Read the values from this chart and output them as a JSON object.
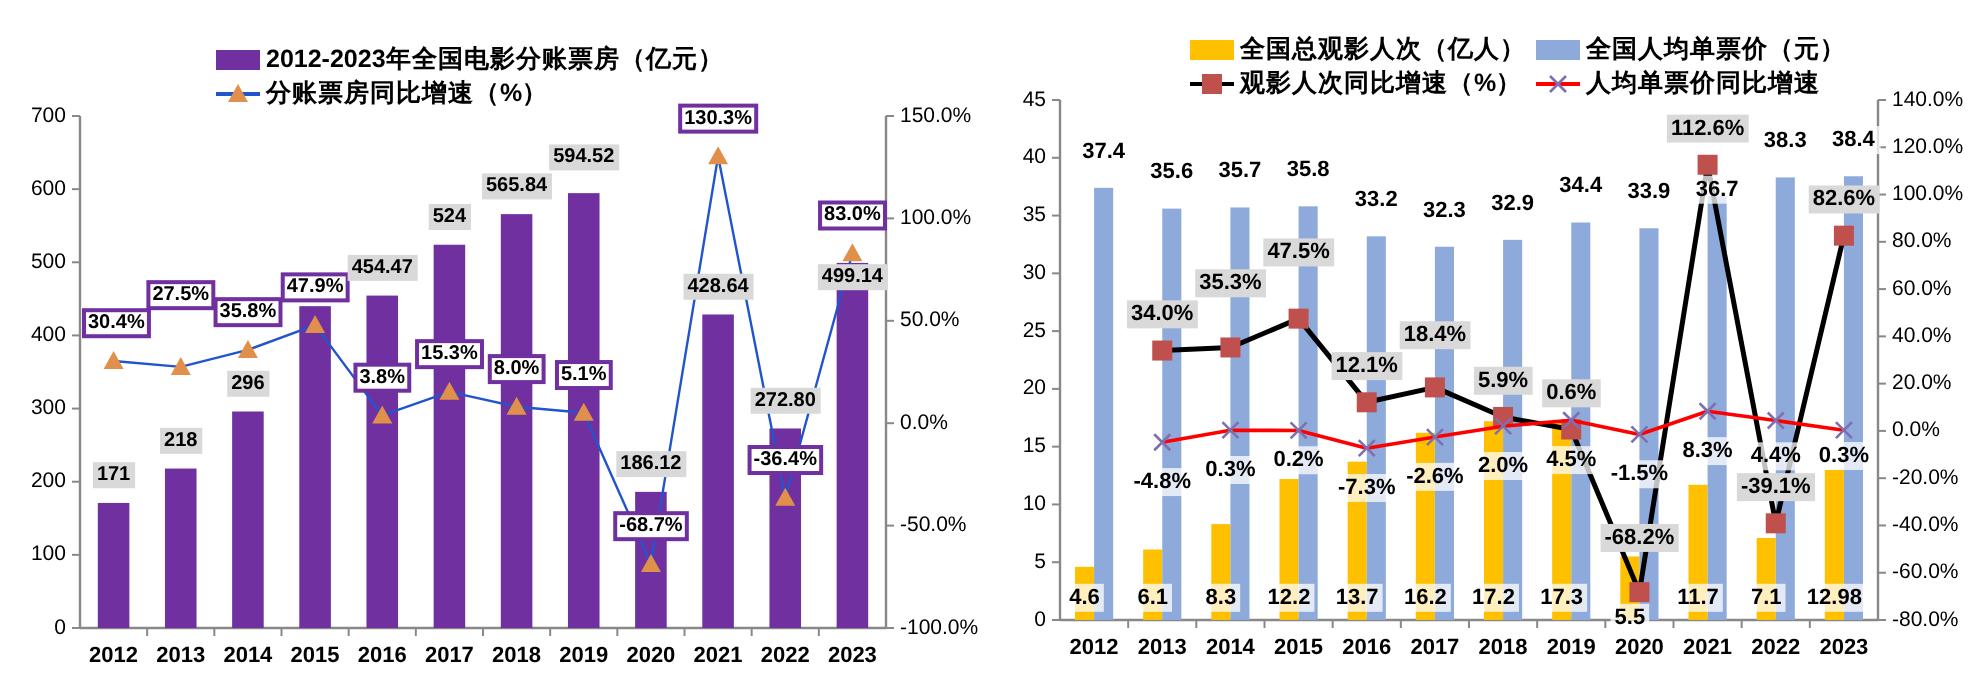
{
  "chart_data": [
    {
      "type": "bar",
      "categories": [
        "2012",
        "2013",
        "2014",
        "2015",
        "2016",
        "2017",
        "2018",
        "2019",
        "2020",
        "2021",
        "2022",
        "2023"
      ],
      "series": [
        {
          "name": "2012-2023年全国电影分账票房（亿元）",
          "type": "bar",
          "color": "#7030a0",
          "values": [
            171,
            218,
            296,
            440,
            454.47,
            524,
            565.84,
            594.52,
            186.12,
            428.64,
            272.8,
            499.14
          ],
          "value_labels": [
            "171",
            "218",
            "296",
            null,
            "454.47",
            "524",
            "565.84",
            "594.52",
            "186.12",
            "428.64",
            "272.80",
            "499.14"
          ]
        },
        {
          "name": "分账票房同比增速（%）",
          "type": "line",
          "axis": "y2",
          "marker": "triangle",
          "color": "#2255cc",
          "colors": [
            "#e0904a",
            "#e0904a",
            "#e0904a",
            "#e0904a",
            "#e0904a",
            "#e0904a",
            "#e0904a",
            "#e0904a",
            "#e0904a",
            "#e0904a",
            "#e0904a",
            "#e0904a"
          ],
          "values": [
            30.4,
            27.5,
            35.8,
            47.9,
            3.8,
            15.3,
            8.0,
            5.1,
            -68.7,
            130.3,
            -36.4,
            83.0
          ],
          "value_labels": [
            "30.4%",
            "27.5%",
            "35.8%",
            "47.9%",
            "3.8%",
            "15.3%",
            "8.0%",
            "5.1%",
            "-68.7%",
            "130.3%",
            "-36.4%",
            "83.0%"
          ]
        }
      ],
      "ylim": [
        0,
        700
      ],
      "yticks": [
        0,
        100,
        200,
        300,
        400,
        500,
        600,
        700
      ],
      "y2lim": [
        -100,
        150
      ],
      "y2ticks": [
        {
          "value": -100,
          "label": "-100.0%"
        },
        {
          "value": -50,
          "label": "-50.0%"
        },
        {
          "value": 0,
          "label": "0.0%"
        },
        {
          "value": 50,
          "label": "50.0%"
        },
        {
          "value": 100,
          "label": "100.0%"
        },
        {
          "value": 150,
          "label": "150.0%"
        }
      ],
      "legend": "top"
    },
    {
      "type": "bar",
      "categories": [
        "2012",
        "2013",
        "2014",
        "2015",
        "2016",
        "2017",
        "2018",
        "2019",
        "2020",
        "2021",
        "2022",
        "2023"
      ],
      "series": [
        {
          "name": "全国总观影人次（亿人）",
          "type": "bar",
          "color": "#ffc000",
          "values": [
            4.6,
            6.1,
            8.3,
            12.2,
            13.7,
            16.2,
            17.2,
            17.3,
            5.5,
            11.7,
            7.1,
            12.98
          ],
          "value_labels": [
            "4.6",
            "6.1",
            "8.3",
            "12.2",
            "13.7",
            "16.2",
            "17.2",
            "17.3",
            "5.5",
            "11.7",
            "7.1",
            "12.98"
          ]
        },
        {
          "name": "全国人均单票价（元）",
          "type": "bar",
          "color": "#8eaadb",
          "values": [
            37.4,
            35.6,
            35.7,
            35.8,
            33.2,
            32.3,
            32.9,
            34.4,
            33.9,
            36.7,
            38.3,
            38.4
          ],
          "value_labels": [
            "37.4",
            "35.6",
            "35.7",
            "35.8",
            "33.2",
            "32.3",
            "32.9",
            "34.4",
            "33.9",
            "36.7",
            "38.3",
            "38.4"
          ]
        },
        {
          "name": "观影人次同比增速（%）",
          "type": "line",
          "axis": "y2",
          "marker": "square",
          "color": "#000000",
          "colors": [
            "#c0504d",
            "#c0504d",
            "#c0504d",
            "#c0504d",
            "#c0504d",
            "#c0504d",
            "#c0504d",
            "#c0504d",
            "#c0504d",
            "#c0504d",
            "#c0504d",
            "#c0504d"
          ],
          "values": [
            null,
            34.0,
            35.3,
            47.5,
            12.1,
            18.4,
            5.9,
            0.6,
            -68.2,
            112.6,
            -39.1,
            82.6
          ],
          "value_labels": [
            null,
            "34.0%",
            "35.3%",
            "47.5%",
            "12.1%",
            "18.4%",
            "5.9%",
            "0.6%",
            "-68.2%",
            "112.6%",
            "-39.1%",
            "82.6%"
          ]
        },
        {
          "name": "人均单票价同比增速",
          "type": "line",
          "axis": "y2",
          "marker": "cross",
          "color": "#ff0000",
          "colors": [
            "#7f6fb0",
            "#7f6fb0",
            "#7f6fb0",
            "#7f6fb0",
            "#7f6fb0",
            "#7f6fb0",
            "#7f6fb0",
            "#7f6fb0",
            "#7f6fb0",
            "#7f6fb0",
            "#7f6fb0",
            "#7f6fb0"
          ],
          "values": [
            null,
            -4.8,
            0.3,
            0.2,
            -7.3,
            -2.6,
            2.0,
            4.5,
            -1.5,
            8.3,
            4.4,
            0.3
          ],
          "value_labels": [
            null,
            "-4.8%",
            "0.3%",
            "0.2%",
            "-7.3%",
            "-2.6%",
            "2.0%",
            "4.5%",
            "-1.5%",
            "8.3%",
            "4.4%",
            "0.3%"
          ]
        }
      ],
      "ylim": [
        0,
        45
      ],
      "yticks": [
        0,
        5,
        10,
        15,
        20,
        25,
        30,
        35,
        40,
        45
      ],
      "y2lim": [
        -80,
        140
      ],
      "y2ticks": [
        {
          "value": -80,
          "label": "-80.0%"
        },
        {
          "value": -60,
          "label": "-60.0%"
        },
        {
          "value": -40,
          "label": "-40.0%"
        },
        {
          "value": -20,
          "label": "-20.0%"
        },
        {
          "value": 0,
          "label": "0.0%"
        },
        {
          "value": 20,
          "label": "20.0%"
        },
        {
          "value": 40,
          "label": "40.0%"
        },
        {
          "value": 60,
          "label": "60.0%"
        },
        {
          "value": 80,
          "label": "80.0%"
        },
        {
          "value": 100,
          "label": "100.0%"
        },
        {
          "value": 120,
          "label": "120.0%"
        },
        {
          "value": 140,
          "label": "140.0%"
        }
      ],
      "legend": "top"
    }
  ]
}
